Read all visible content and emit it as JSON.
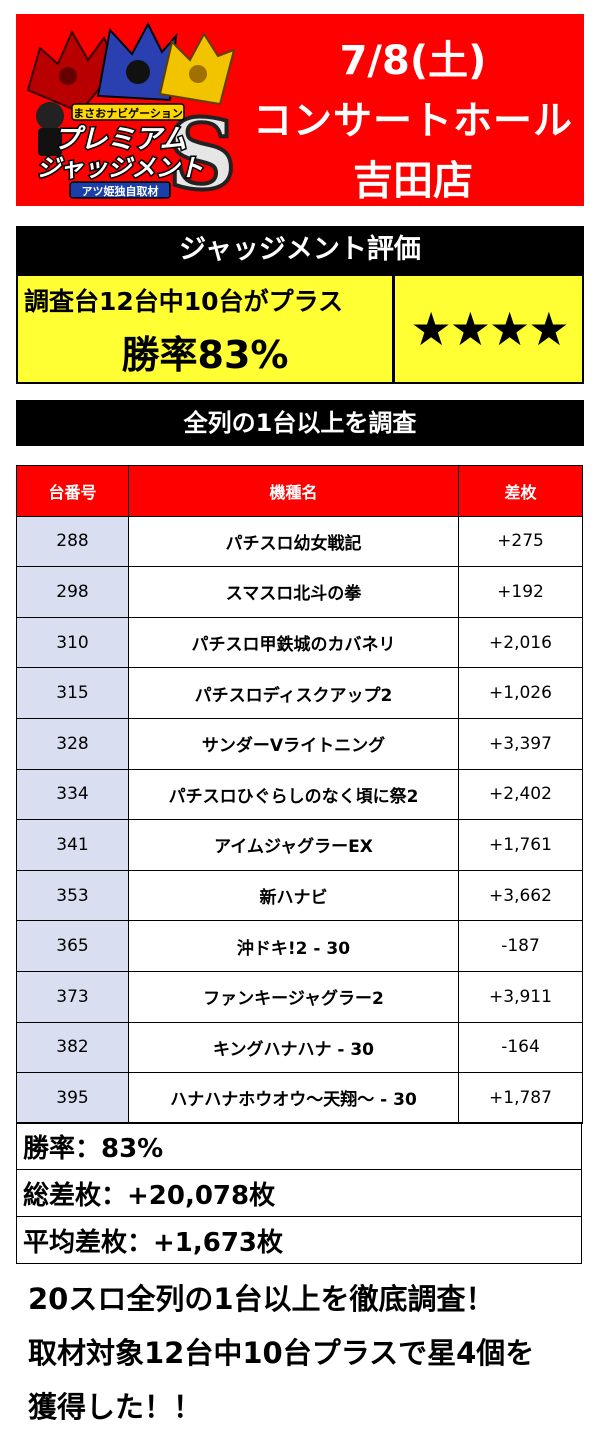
{
  "header": {
    "date": "7/8(土)",
    "hall": "コンサートホール",
    "store": "吉田店",
    "logo": {
      "top_caption": "まさおナビゲーション",
      "title_line1": "プレミアム",
      "title_line2": "ジャッジメント",
      "letter": "S",
      "bottom_caption": "アツ姫独自取材"
    }
  },
  "judgement": {
    "title": "ジャッジメント評価",
    "line1": "調査台12台中10台がプラス",
    "line2": "勝率83%",
    "stars": "★★★★",
    "star_count": 4
  },
  "survey_banner": "全列の1台以上を調査",
  "table": {
    "headers": [
      "台番号",
      "機種名",
      "差枚"
    ],
    "rows": [
      {
        "num": "288",
        "name": "パチスロ幼女戦記",
        "diff": "+275"
      },
      {
        "num": "298",
        "name": "スマスロ北斗の拳",
        "diff": "+192"
      },
      {
        "num": "310",
        "name": "パチスロ甲鉄城のカバネリ",
        "diff": "+2,016"
      },
      {
        "num": "315",
        "name": "パチスロディスクアップ2",
        "diff": "+1,026"
      },
      {
        "num": "328",
        "name": "サンダーVライトニング",
        "diff": "+3,397"
      },
      {
        "num": "334",
        "name": "パチスロひぐらしのなく頃に祭2",
        "diff": "+2,402"
      },
      {
        "num": "341",
        "name": "アイムジャグラーEX",
        "diff": "+1,761"
      },
      {
        "num": "353",
        "name": "新ハナビ",
        "diff": "+3,662"
      },
      {
        "num": "365",
        "name": "沖ドキ!2 - 30",
        "diff": "-187"
      },
      {
        "num": "373",
        "name": "ファンキージャグラー2",
        "diff": "+3,911"
      },
      {
        "num": "382",
        "name": "キングハナハナ - 30",
        "diff": "-164"
      },
      {
        "num": "395",
        "name": "ハナハナホウオウ～天翔～ - 30",
        "diff": "+1,787"
      }
    ]
  },
  "summary": {
    "win_rate": "勝率：83%",
    "total_diff": "総差枚：+20,078枚",
    "avg_diff": "平均差枚：+1,673枚"
  },
  "footer": {
    "line1": "20スロ全列の1台以上を徹底調査！",
    "line2": "取材対象12台中10台プラスで星4個を",
    "line3": "獲得した！！"
  },
  "colors": {
    "header_red": "#ff0000",
    "judge_yellow": "#ffff33",
    "number_cell_blue": "#d9dff0",
    "banner_black": "#000000"
  }
}
